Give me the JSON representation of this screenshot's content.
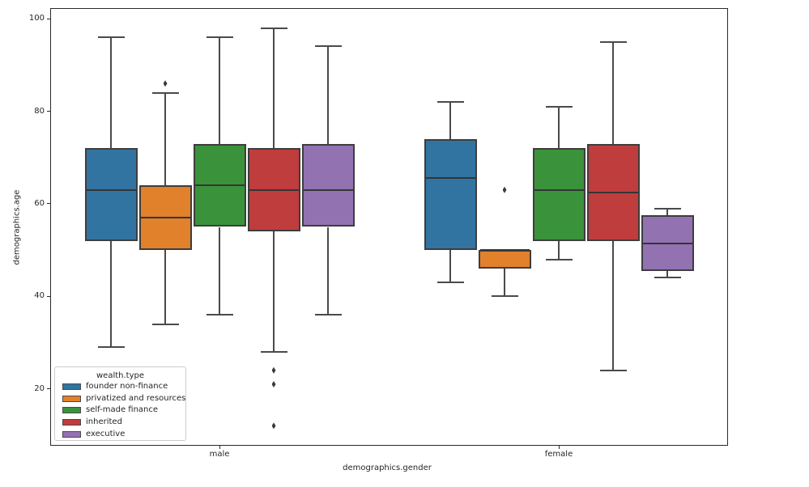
{
  "chart_data": {
    "type": "box",
    "title": "",
    "xlabel": "demographics.gender",
    "ylabel": "demographics.age",
    "categories": [
      "male",
      "female"
    ],
    "yticks": [
      20,
      40,
      60,
      80,
      100
    ],
    "ylim": [
      7.7,
      102.3
    ],
    "grid": false,
    "legend": {
      "title": "wealth.type",
      "position": "lower-left"
    },
    "line_color": "#4a4a4a",
    "series": [
      {
        "name": "founder non-finance",
        "color": "#3274A1",
        "boxes": [
          {
            "category": "male",
            "whislo": 29,
            "q1": 52,
            "med": 63,
            "q3": 72,
            "whishi": 96,
            "outliers": []
          },
          {
            "category": "female",
            "whislo": 43,
            "q1": 50,
            "med": 65.5,
            "q3": 74,
            "whishi": 82,
            "outliers": []
          }
        ]
      },
      {
        "name": "privatized and resources",
        "color": "#E1812C",
        "boxes": [
          {
            "category": "male",
            "whislo": 34,
            "q1": 50,
            "med": 57,
            "q3": 64,
            "whishi": 84,
            "outliers": [
              86
            ]
          },
          {
            "category": "female",
            "whislo": 40,
            "q1": 46,
            "med": 50,
            "q3": 50,
            "whishi": 50,
            "outliers": [
              63
            ]
          }
        ]
      },
      {
        "name": "self-made finance",
        "color": "#3A923A",
        "boxes": [
          {
            "category": "male",
            "whislo": 36,
            "q1": 55,
            "med": 64,
            "q3": 73,
            "whishi": 96,
            "outliers": []
          },
          {
            "category": "female",
            "whislo": 48,
            "q1": 52,
            "med": 63,
            "q3": 72,
            "whishi": 81,
            "outliers": []
          }
        ]
      },
      {
        "name": "inherited",
        "color": "#C03D3E",
        "boxes": [
          {
            "category": "male",
            "whislo": 28,
            "q1": 54,
            "med": 63,
            "q3": 72,
            "whishi": 98,
            "outliers": [
              24,
              21,
              12
            ]
          },
          {
            "category": "female",
            "whislo": 24,
            "q1": 52,
            "med": 62.5,
            "q3": 73,
            "whishi": 95,
            "outliers": []
          }
        ]
      },
      {
        "name": "executive",
        "color": "#9372B2",
        "boxes": [
          {
            "category": "male",
            "whislo": 36,
            "q1": 55,
            "med": 63,
            "q3": 73,
            "whishi": 94,
            "outliers": []
          },
          {
            "category": "female",
            "whislo": 44,
            "q1": 45.5,
            "med": 51.5,
            "q3": 57.5,
            "whishi": 59,
            "outliers": []
          }
        ]
      }
    ]
  }
}
